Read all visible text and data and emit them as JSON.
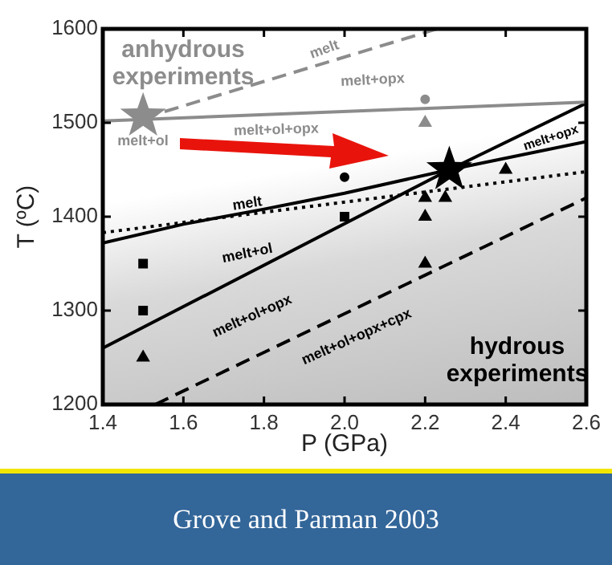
{
  "chart_data": {
    "type": "line",
    "xlabel": "P (GPa)",
    "ylabel": "T (ºC)",
    "xlim": [
      1.4,
      2.6
    ],
    "xticks": [
      1.4,
      1.6,
      1.8,
      {
        "value": 2,
        "label": "2.0"
      },
      2.2,
      2.4,
      2.6
    ],
    "ylim": [
      1200,
      1600
    ],
    "yticks": [
      1200,
      1300,
      1400,
      1500,
      1600
    ],
    "grid": false,
    "legend": false,
    "series": [
      {
        "x": [
          1.5,
          2.23
        ],
        "values": [
          1505,
          1600
        ],
        "color": "#8c8c8c",
        "line_style": "dashed"
      },
      {
        "x": [
          1.4,
          2.6
        ],
        "values": [
          1502,
          1522
        ],
        "color": "#8c8c8c",
        "line_style": "solid"
      },
      {
        "x": [
          1.4,
          1.6,
          1.8,
          2.0,
          2.26,
          2.6
        ],
        "values": [
          1372,
          1392,
          1408,
          1425,
          1450,
          1480
        ],
        "color": "#000000",
        "line_style": "solid"
      },
      {
        "x": [
          1.4,
          2.26,
          2.6
        ],
        "values": [
          1260,
          1450,
          1521
        ],
        "color": "#000000",
        "line_style": "solid"
      },
      {
        "x": [
          1.4,
          2.6
        ],
        "values": [
          1383,
          1448
        ],
        "color": "#000000",
        "line_style": "dotted"
      },
      {
        "x": [
          1.53,
          2.6
        ],
        "values": [
          1200,
          1420
        ],
        "color": "#000000",
        "line_style": "dashed"
      },
      {
        "type": "scatter",
        "x": [
          1.5,
          1.5,
          2.0
        ],
        "values": [
          1350,
          1300,
          1400
        ],
        "color": "#000000",
        "marker": "square"
      },
      {
        "type": "scatter",
        "x": [
          1.5,
          2.2,
          2.2,
          2.2,
          2.25,
          2.4
        ],
        "values": [
          1250,
          1350,
          1400,
          1420,
          1420,
          1450
        ],
        "color": "#000000",
        "marker": "triangle"
      },
      {
        "type": "scatter",
        "x": [
          2.0
        ],
        "values": [
          1442
        ],
        "color": "#000000",
        "marker": "circle"
      },
      {
        "type": "scatter",
        "x": [
          2.2
        ],
        "values": [
          1500
        ],
        "color": "#8c8c8c",
        "marker": "triangle"
      },
      {
        "type": "scatter",
        "x": [
          2.2
        ],
        "values": [
          1525
        ],
        "color": "#8c8c8c",
        "marker": "circle"
      },
      {
        "type": "scatter",
        "x": [
          1.5
        ],
        "values": [
          1507
        ],
        "color": "#8c8c8c",
        "marker": "star"
      },
      {
        "type": "scatter",
        "x": [
          2.26
        ],
        "values": [
          1450
        ],
        "color": "#000000",
        "marker": "star"
      }
    ],
    "annotations": [
      "anhydrous experiments",
      "melt",
      "melt+opx",
      "melt+ol+opx",
      "melt+ol",
      "melt",
      "melt+ol",
      "melt+ol+opx",
      "melt+ol+opx+cpx",
      "melt+opx",
      "hydrous experiments",
      "Grove and Parman 2003"
    ]
  }
}
